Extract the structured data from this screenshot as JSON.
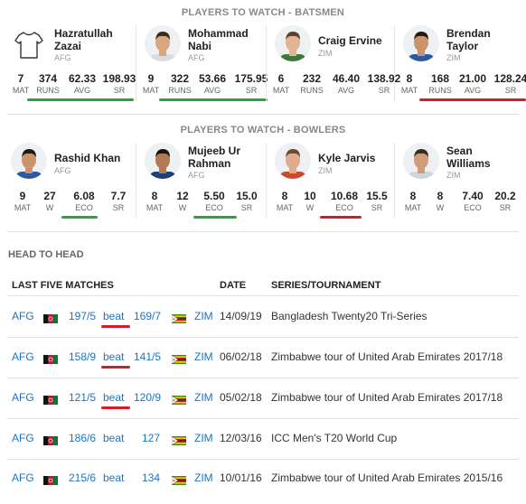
{
  "batsmen_title": "PLAYERS TO WATCH - BATSMEN",
  "bowlers_title": "PLAYERS TO WATCH - BOWLERS",
  "batsmen": [
    {
      "first": "Hazratullah",
      "last": "Zazai",
      "country": "AFG",
      "avatar": "shirt-icon",
      "stats": [
        {
          "v": "7",
          "l": "MAT"
        },
        {
          "v": "374",
          "l": "RUNS"
        },
        {
          "v": "62.33",
          "l": "AVG"
        },
        {
          "v": "198.93",
          "l": "SR"
        }
      ],
      "underline": "green"
    },
    {
      "first": "Mohammad",
      "last": "Nabi",
      "country": "AFG",
      "avatar": "player-photo",
      "stats": [
        {
          "v": "9",
          "l": "MAT"
        },
        {
          "v": "322",
          "l": "RUNS"
        },
        {
          "v": "53.66",
          "l": "AVG"
        },
        {
          "v": "175.95",
          "l": "SR"
        }
      ],
      "underline": "green"
    },
    {
      "first": "Craig Ervine",
      "last": "",
      "country": "ZIM",
      "avatar": "player-photo",
      "stats": [
        {
          "v": "6",
          "l": "MAT"
        },
        {
          "v": "232",
          "l": "RUNS"
        },
        {
          "v": "46.40",
          "l": "AVG"
        },
        {
          "v": "138.92",
          "l": "SR"
        }
      ],
      "underline": "none"
    },
    {
      "first": "Brendan",
      "last": "Taylor",
      "country": "ZIM",
      "avatar": "player-photo",
      "stats": [
        {
          "v": "8",
          "l": "MAT"
        },
        {
          "v": "168",
          "l": "RUNS"
        },
        {
          "v": "21.00",
          "l": "AVG"
        },
        {
          "v": "128.24",
          "l": "SR"
        }
      ],
      "underline": "red"
    }
  ],
  "bowlers": [
    {
      "first": "Rashid Khan",
      "last": "",
      "country": "AFG",
      "avatar": "player-photo",
      "stats": [
        {
          "v": "9",
          "l": "MAT"
        },
        {
          "v": "27",
          "l": "W"
        },
        {
          "v": "6.08",
          "l": "ECO"
        },
        {
          "v": "7.7",
          "l": "SR"
        }
      ],
      "underline": "green"
    },
    {
      "first": "Mujeeb Ur",
      "last": "Rahman",
      "country": "AFG",
      "avatar": "player-photo",
      "stats": [
        {
          "v": "8",
          "l": "MAT"
        },
        {
          "v": "12",
          "l": "W"
        },
        {
          "v": "5.50",
          "l": "ECO"
        },
        {
          "v": "15.0",
          "l": "SR"
        }
      ],
      "underline": "green"
    },
    {
      "first": "Kyle Jarvis",
      "last": "",
      "country": "ZIM",
      "avatar": "player-photo",
      "stats": [
        {
          "v": "8",
          "l": "MAT"
        },
        {
          "v": "10",
          "l": "W"
        },
        {
          "v": "10.68",
          "l": "ECO"
        },
        {
          "v": "15.5",
          "l": "SR"
        }
      ],
      "underline": "red"
    },
    {
      "first": "Sean",
      "last": "Williams",
      "country": "ZIM",
      "avatar": "player-photo",
      "stats": [
        {
          "v": "8",
          "l": "MAT"
        },
        {
          "v": "8",
          "l": "W"
        },
        {
          "v": "7.40",
          "l": "ECO"
        },
        {
          "v": "20.2",
          "l": "SR"
        }
      ],
      "underline": "none"
    }
  ],
  "head_to_head": {
    "title": "HEAD TO HEAD",
    "col_matches": "LAST FIVE MATCHES",
    "col_date": "DATE",
    "col_series": "SERIES/TOURNAMENT",
    "matches": [
      {
        "team1": "AFG",
        "score1": "197/5",
        "result": "beat",
        "score2": "169/7",
        "team2": "ZIM",
        "date": "14/09/19",
        "series": "Bangladesh Twenty20 Tri-Series",
        "beat_underlined": true
      },
      {
        "team1": "AFG",
        "score1": "158/9",
        "result": "beat",
        "score2": "141/5",
        "team2": "ZIM",
        "date": "06/02/18",
        "series": "Zimbabwe tour of United Arab Emirates 2017/18",
        "beat_underlined": true
      },
      {
        "team1": "AFG",
        "score1": "121/5",
        "result": "beat",
        "score2": "120/9",
        "team2": "ZIM",
        "date": "05/02/18",
        "series": "Zimbabwe tour of United Arab Emirates 2017/18",
        "beat_underlined": true
      },
      {
        "team1": "AFG",
        "score1": "186/6",
        "result": "beat",
        "score2": "127",
        "team2": "ZIM",
        "date": "12/03/16",
        "series": "ICC Men's T20 World Cup",
        "beat_underlined": false
      },
      {
        "team1": "AFG",
        "score1": "215/6",
        "result": "beat",
        "score2": "134",
        "team2": "ZIM",
        "date": "10/01/16",
        "series": "Zimbabwe tour of United Arab Emirates 2015/16",
        "beat_underlined": false
      }
    ]
  },
  "colors": {
    "link": "#1e73be",
    "good": "#2aa33f",
    "bad": "#d81b2a"
  }
}
